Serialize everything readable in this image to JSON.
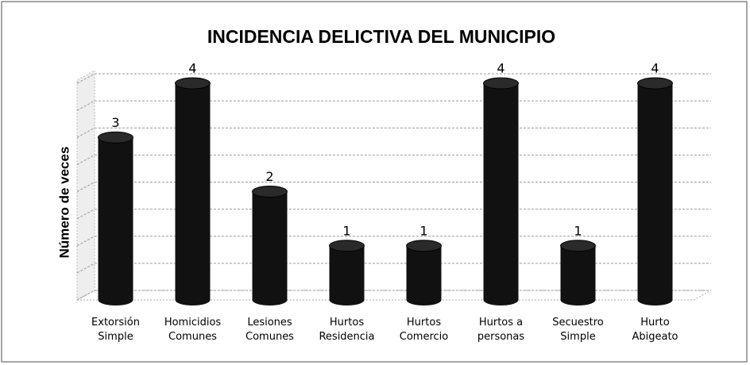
{
  "chart_data": {
    "type": "bar",
    "title": "INCIDENCIA DELICTIVA DEL MUNICIPIO",
    "y_label": "Número de veces",
    "categories": [
      "Extorsión\nSimple",
      "Homicidios\nComunes",
      "Lesiones\nComunes",
      "Hurtos\nResidencia",
      "Hurtos\nComercio",
      "Hurtos a\npersonas",
      "Secuestro\nSimple",
      "Hurto\nAbigeato"
    ],
    "values": [
      3,
      4,
      2,
      1,
      1,
      4,
      1,
      4
    ],
    "color": "#111111",
    "ylim": [
      0,
      4
    ],
    "yticks": [
      0,
      0.5,
      1,
      1.5,
      2,
      2.5,
      3,
      3.5,
      4
    ],
    "grid": true
  }
}
